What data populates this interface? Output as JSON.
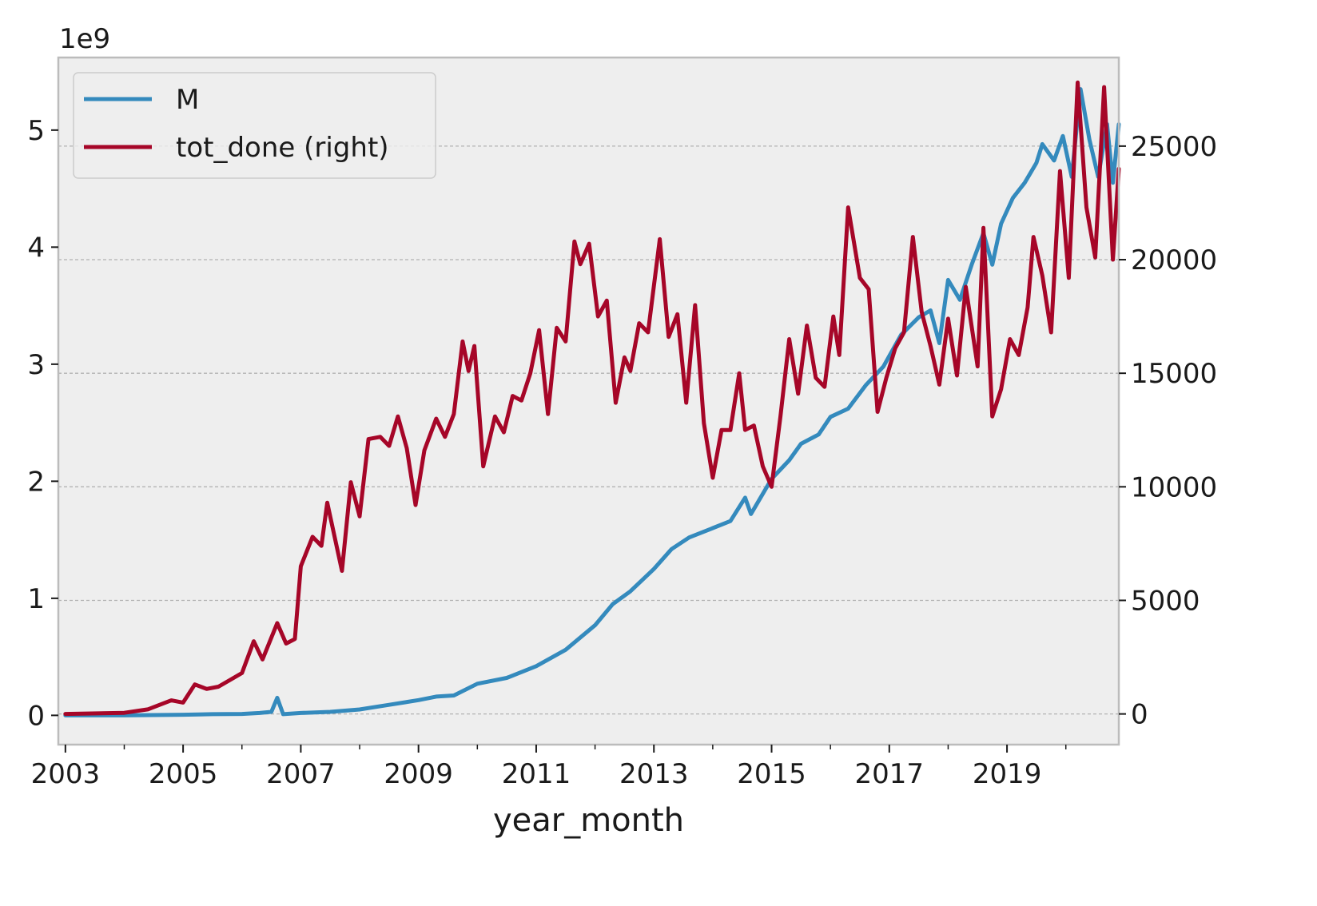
{
  "chart_data": {
    "type": "line",
    "xlabel": "year_month",
    "left_axis": {
      "multiplier_label": "1e9",
      "ylim": [
        -0.25,
        5.62
      ],
      "ticks": [
        0,
        1,
        2,
        3,
        4,
        5
      ]
    },
    "right_axis": {
      "ylim": [
        -1350,
        28900
      ],
      "ticks": [
        0,
        5000,
        10000,
        15000,
        20000,
        25000
      ]
    },
    "xlim": [
      2002.88,
      2020.9
    ],
    "x_ticks": [
      2003,
      2005,
      2007,
      2009,
      2011,
      2013,
      2015,
      2017,
      2019
    ],
    "x_minor_ticks": [
      2004,
      2006,
      2008,
      2010,
      2012,
      2014,
      2016,
      2018,
      2020
    ],
    "grid": true,
    "legend": {
      "placement": "top-left",
      "entries": [
        "M",
        "tot_done (right)"
      ]
    },
    "colors": {
      "M": "#348abd",
      "tot_done": "#a60628",
      "plot_bg": "#eeeeee",
      "frame": "#bcbcbc"
    },
    "series": [
      {
        "name": "M",
        "axis": "left",
        "unit": "x 1e9",
        "points": [
          [
            2003.0,
            0.0
          ],
          [
            2004.0,
            0.0
          ],
          [
            2005.0,
            0.005
          ],
          [
            2005.5,
            0.01
          ],
          [
            2006.0,
            0.012
          ],
          [
            2006.3,
            0.02
          ],
          [
            2006.5,
            0.03
          ],
          [
            2006.6,
            0.15
          ],
          [
            2006.7,
            0.01
          ],
          [
            2007.0,
            0.02
          ],
          [
            2007.5,
            0.03
          ],
          [
            2008.0,
            0.05
          ],
          [
            2008.5,
            0.09
          ],
          [
            2009.0,
            0.13
          ],
          [
            2009.3,
            0.16
          ],
          [
            2009.6,
            0.17
          ],
          [
            2010.0,
            0.27
          ],
          [
            2010.5,
            0.32
          ],
          [
            2011.0,
            0.42
          ],
          [
            2011.5,
            0.56
          ],
          [
            2012.0,
            0.77
          ],
          [
            2012.3,
            0.95
          ],
          [
            2012.6,
            1.06
          ],
          [
            2013.0,
            1.25
          ],
          [
            2013.3,
            1.42
          ],
          [
            2013.6,
            1.52
          ],
          [
            2014.0,
            1.6
          ],
          [
            2014.3,
            1.66
          ],
          [
            2014.55,
            1.86
          ],
          [
            2014.65,
            1.72
          ],
          [
            2015.0,
            2.02
          ],
          [
            2015.3,
            2.18
          ],
          [
            2015.5,
            2.32
          ],
          [
            2015.8,
            2.4
          ],
          [
            2016.0,
            2.55
          ],
          [
            2016.3,
            2.62
          ],
          [
            2016.6,
            2.82
          ],
          [
            2016.9,
            2.98
          ],
          [
            2017.2,
            3.25
          ],
          [
            2017.5,
            3.4
          ],
          [
            2017.7,
            3.46
          ],
          [
            2017.85,
            3.18
          ],
          [
            2018.0,
            3.72
          ],
          [
            2018.2,
            3.55
          ],
          [
            2018.4,
            3.85
          ],
          [
            2018.6,
            4.12
          ],
          [
            2018.75,
            3.85
          ],
          [
            2018.9,
            4.2
          ],
          [
            2019.1,
            4.42
          ],
          [
            2019.3,
            4.55
          ],
          [
            2019.5,
            4.72
          ],
          [
            2019.6,
            4.88
          ],
          [
            2019.8,
            4.74
          ],
          [
            2019.95,
            4.95
          ],
          [
            2020.1,
            4.6
          ],
          [
            2020.25,
            5.35
          ],
          [
            2020.4,
            4.92
          ],
          [
            2020.55,
            4.6
          ],
          [
            2020.7,
            5.05
          ],
          [
            2020.8,
            4.55
          ],
          [
            2020.9,
            5.05
          ]
        ]
      },
      {
        "name": "tot_done",
        "axis": "right",
        "points": [
          [
            2003.0,
            0
          ],
          [
            2004.0,
            50
          ],
          [
            2004.4,
            200
          ],
          [
            2004.8,
            600
          ],
          [
            2005.0,
            500
          ],
          [
            2005.2,
            1300
          ],
          [
            2005.4,
            1100
          ],
          [
            2005.6,
            1200
          ],
          [
            2005.8,
            1500
          ],
          [
            2006.0,
            1800
          ],
          [
            2006.2,
            3200
          ],
          [
            2006.35,
            2400
          ],
          [
            2006.6,
            4000
          ],
          [
            2006.75,
            3100
          ],
          [
            2006.9,
            3300
          ],
          [
            2007.0,
            6500
          ],
          [
            2007.2,
            7800
          ],
          [
            2007.35,
            7400
          ],
          [
            2007.45,
            9300
          ],
          [
            2007.7,
            6300
          ],
          [
            2007.85,
            10200
          ],
          [
            2008.0,
            8700
          ],
          [
            2008.15,
            12100
          ],
          [
            2008.35,
            12200
          ],
          [
            2008.5,
            11800
          ],
          [
            2008.65,
            13100
          ],
          [
            2008.8,
            11700
          ],
          [
            2008.95,
            9200
          ],
          [
            2009.1,
            11600
          ],
          [
            2009.3,
            13000
          ],
          [
            2009.45,
            12200
          ],
          [
            2009.6,
            13200
          ],
          [
            2009.75,
            16400
          ],
          [
            2009.85,
            15100
          ],
          [
            2009.95,
            16200
          ],
          [
            2010.1,
            10900
          ],
          [
            2010.3,
            13100
          ],
          [
            2010.45,
            12400
          ],
          [
            2010.6,
            14000
          ],
          [
            2010.75,
            13800
          ],
          [
            2010.9,
            15000
          ],
          [
            2011.05,
            16900
          ],
          [
            2011.2,
            13200
          ],
          [
            2011.35,
            17000
          ],
          [
            2011.5,
            16400
          ],
          [
            2011.65,
            20800
          ],
          [
            2011.75,
            19800
          ],
          [
            2011.9,
            20700
          ],
          [
            2012.05,
            17500
          ],
          [
            2012.2,
            18200
          ],
          [
            2012.35,
            13700
          ],
          [
            2012.5,
            15700
          ],
          [
            2012.6,
            15100
          ],
          [
            2012.75,
            17200
          ],
          [
            2012.9,
            16800
          ],
          [
            2013.1,
            20900
          ],
          [
            2013.25,
            16600
          ],
          [
            2013.4,
            17600
          ],
          [
            2013.55,
            13700
          ],
          [
            2013.7,
            18000
          ],
          [
            2013.85,
            12800
          ],
          [
            2014.0,
            10400
          ],
          [
            2014.15,
            12500
          ],
          [
            2014.3,
            12500
          ],
          [
            2014.45,
            15000
          ],
          [
            2014.55,
            12500
          ],
          [
            2014.7,
            12700
          ],
          [
            2014.85,
            10900
          ],
          [
            2015.0,
            10000
          ],
          [
            2015.15,
            13100
          ],
          [
            2015.3,
            16500
          ],
          [
            2015.45,
            14100
          ],
          [
            2015.6,
            17100
          ],
          [
            2015.75,
            14800
          ],
          [
            2015.9,
            14400
          ],
          [
            2016.05,
            17500
          ],
          [
            2016.15,
            15800
          ],
          [
            2016.3,
            22300
          ],
          [
            2016.5,
            19200
          ],
          [
            2016.65,
            18700
          ],
          [
            2016.8,
            13300
          ],
          [
            2016.95,
            14800
          ],
          [
            2017.1,
            16100
          ],
          [
            2017.25,
            16800
          ],
          [
            2017.4,
            21000
          ],
          [
            2017.55,
            17700
          ],
          [
            2017.7,
            16200
          ],
          [
            2017.85,
            14500
          ],
          [
            2018.0,
            17400
          ],
          [
            2018.15,
            14900
          ],
          [
            2018.3,
            18800
          ],
          [
            2018.5,
            15300
          ],
          [
            2018.6,
            21400
          ],
          [
            2018.75,
            13100
          ],
          [
            2018.9,
            14300
          ],
          [
            2019.05,
            16500
          ],
          [
            2019.2,
            15800
          ],
          [
            2019.35,
            17900
          ],
          [
            2019.45,
            21000
          ],
          [
            2019.6,
            19300
          ],
          [
            2019.75,
            16800
          ],
          [
            2019.9,
            23900
          ],
          [
            2020.05,
            19200
          ],
          [
            2020.2,
            27800
          ],
          [
            2020.35,
            22300
          ],
          [
            2020.5,
            20100
          ],
          [
            2020.65,
            27600
          ],
          [
            2020.8,
            20000
          ],
          [
            2020.9,
            24000
          ]
        ]
      }
    ]
  }
}
